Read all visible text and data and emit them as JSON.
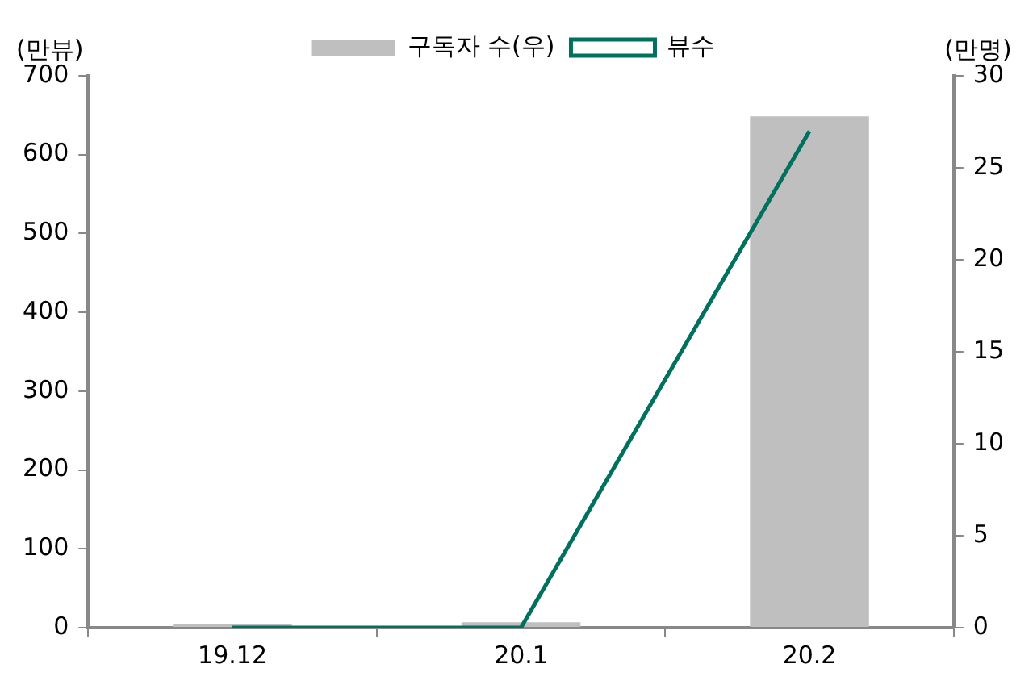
{
  "chart_data": {
    "type": "bar",
    "categories": [
      "19.12",
      "20.1",
      "20.2"
    ],
    "series": [
      {
        "name": "구독자 수(우)",
        "axis": "y2",
        "color": "#bfbfbf",
        "values": [
          0.2,
          0.3,
          27.8
        ]
      },
      {
        "name": "뷰수",
        "type": "line",
        "axis": "y",
        "color": "#00705f",
        "values": [
          0,
          0,
          630
        ],
        "marker": "none"
      }
    ],
    "ylabel": "(만뷰)",
    "y2label": "(만명)",
    "ylim": [
      0,
      700
    ],
    "yticks": [
      0,
      100,
      200,
      300,
      400,
      500,
      600,
      700
    ],
    "y2lim": [
      0,
      30
    ],
    "y2ticks": [
      0,
      5,
      10,
      15,
      20,
      25,
      30
    ],
    "legend": "top",
    "grid": false
  }
}
